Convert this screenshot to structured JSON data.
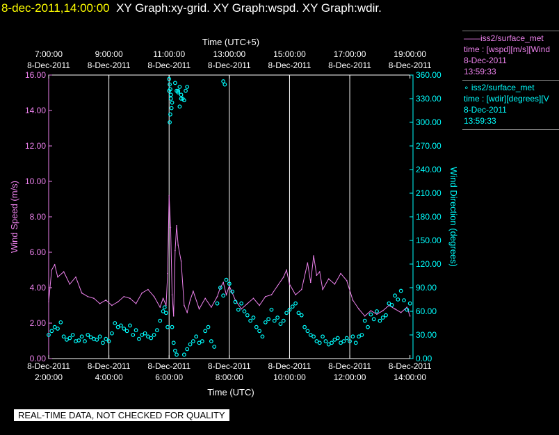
{
  "header": {
    "timestamp": "8-dec-2011,14:00:00",
    "graph_titles": "XY Graph:xy-grid.  XY Graph:wspd.  XY Graph:wdir."
  },
  "legend": {
    "speed_line1": "——iss2/surface_met",
    "speed_line2": "time : [wspd][m/s][Wind",
    "speed_line3": "8-Dec-2011",
    "speed_line4": "13:59:33",
    "dir_line1": "∘ iss2/surface_met",
    "dir_line2": "time : [wdir][degrees][V",
    "dir_line3": "8-Dec-2011",
    "dir_line4": "13:59:33"
  },
  "footer": {
    "quality_note": "REAL-TIME DATA, NOT CHECKED FOR QUALITY"
  },
  "colors": {
    "speed": "#ee82ee",
    "direction": "#00ffff",
    "grid": "#ffffff"
  },
  "chart_data": {
    "type": "line",
    "top_axis_title": "Time (UTC+5)",
    "bottom_axis_title": "Time (UTC)",
    "ylabel_left": "Wind Speed (m/s)",
    "ylabel_right": "Wind Direction (degrees)",
    "xlim_hours_utc": [
      2.0,
      14.1
    ],
    "ylim_left": [
      0,
      16
    ],
    "ylim_right": [
      0,
      360
    ],
    "left_ticks": [
      "0.00",
      "2.00",
      "4.00",
      "6.00",
      "8.00",
      "10.00",
      "12.00",
      "14.00",
      "16.00"
    ],
    "right_ticks": [
      "0.00",
      "30.00",
      "60.00",
      "90.00",
      "120.00",
      "150.00",
      "180.00",
      "210.00",
      "240.00",
      "270.00",
      "300.00",
      "330.00",
      "360.00"
    ],
    "bottom_ticks": [
      {
        "hour": 2,
        "date": "8-Dec-2011",
        "time": "2:00:00"
      },
      {
        "hour": 4,
        "date": "8-Dec-2011",
        "time": "4:00:00"
      },
      {
        "hour": 6,
        "date": "8-Dec-2011",
        "time": "6:00:00"
      },
      {
        "hour": 8,
        "date": "8-Dec-2011",
        "time": "8:00:00"
      },
      {
        "hour": 10,
        "date": "8-Dec-2011",
        "time": "10:00:00"
      },
      {
        "hour": 12,
        "date": "8-Dec-2011",
        "time": "12:00:00"
      },
      {
        "hour": 14,
        "date": "8-Dec-2011",
        "time": "14:00:00"
      }
    ],
    "top_ticks": [
      {
        "hour": 2,
        "time": "7:00:00",
        "date": "8-Dec-2011"
      },
      {
        "hour": 4,
        "time": "9:00:00",
        "date": "8-Dec-2011"
      },
      {
        "hour": 6,
        "time": "11:00:00",
        "date": "8-Dec-2011"
      },
      {
        "hour": 8,
        "time": "13:00:00",
        "date": "8-Dec-2011"
      },
      {
        "hour": 10,
        "time": "15:00:00",
        "date": "8-Dec-2011"
      },
      {
        "hour": 12,
        "time": "17:00:00",
        "date": "8-Dec-2011"
      },
      {
        "hour": 14,
        "time": "19:00:00",
        "date": "8-Dec-2011"
      }
    ],
    "grid_hours": [
      4,
      6,
      8,
      10,
      12
    ],
    "series": [
      {
        "name": "iss2/surface_met wspd",
        "axis": "left",
        "style": "line",
        "x_hours": [
          2.0,
          2.1,
          2.2,
          2.3,
          2.5,
          2.7,
          2.9,
          3.1,
          3.3,
          3.5,
          3.7,
          3.9,
          4.1,
          4.3,
          4.5,
          4.7,
          4.9,
          5.1,
          5.3,
          5.5,
          5.7,
          5.8,
          5.9,
          5.95,
          6.0,
          6.05,
          6.1,
          6.15,
          6.2,
          6.25,
          6.3,
          6.4,
          6.5,
          6.6,
          6.7,
          6.8,
          7.0,
          7.2,
          7.4,
          7.6,
          7.7,
          7.8,
          7.9,
          8.0,
          8.2,
          8.4,
          8.6,
          8.8,
          9.0,
          9.2,
          9.4,
          9.6,
          9.8,
          9.9,
          10.0,
          10.2,
          10.4,
          10.6,
          10.7,
          10.8,
          10.9,
          11.0,
          11.1,
          11.3,
          11.5,
          11.7,
          11.9,
          12.1,
          12.3,
          12.5,
          12.7,
          12.9,
          13.1,
          13.3,
          13.5,
          13.7,
          13.9,
          14.0
        ],
        "values": [
          3.2,
          5.0,
          5.3,
          4.6,
          4.9,
          4.2,
          4.6,
          3.7,
          3.5,
          3.4,
          3.1,
          3.3,
          3.0,
          3.2,
          3.5,
          3.4,
          3.1,
          3.7,
          3.9,
          3.5,
          2.9,
          3.4,
          3.0,
          4.8,
          9.2,
          7.4,
          3.6,
          2.4,
          6.1,
          7.5,
          6.4,
          5.5,
          3.0,
          2.6,
          3.3,
          3.8,
          2.8,
          3.4,
          2.9,
          3.5,
          4.0,
          4.3,
          3.6,
          4.1,
          3.3,
          2.8,
          3.1,
          3.4,
          3.0,
          3.5,
          3.6,
          4.1,
          4.6,
          5.0,
          4.2,
          3.6,
          3.9,
          5.4,
          4.3,
          5.8,
          4.7,
          4.9,
          3.9,
          4.5,
          4.2,
          4.8,
          4.4,
          3.3,
          2.8,
          2.4,
          2.7,
          2.5,
          2.7,
          3.0,
          2.8,
          2.6,
          2.9,
          2.4
        ]
      },
      {
        "name": "iss2/surface_met wdir",
        "axis": "right",
        "style": "circles",
        "x_hours": [
          2.0,
          2.1,
          2.2,
          2.3,
          2.4,
          2.5,
          2.6,
          2.7,
          2.8,
          2.9,
          3.0,
          3.1,
          3.2,
          3.3,
          3.4,
          3.5,
          3.6,
          3.7,
          3.8,
          3.9,
          4.0,
          4.1,
          4.2,
          4.3,
          4.4,
          4.5,
          4.6,
          4.7,
          4.8,
          4.9,
          5.0,
          5.1,
          5.2,
          5.3,
          5.4,
          5.5,
          5.6,
          5.7,
          5.8,
          5.85,
          5.9,
          5.95,
          6.0,
          6.02,
          6.04,
          6.06,
          6.1,
          6.15,
          6.2,
          6.25,
          6.3,
          6.35,
          6.4,
          6.5,
          6.6,
          6.7,
          6.8,
          6.9,
          7.0,
          7.1,
          7.2,
          7.3,
          7.4,
          7.5,
          7.6,
          7.7,
          7.8,
          7.9,
          8.0,
          8.1,
          8.2,
          8.3,
          8.4,
          8.5,
          8.6,
          8.7,
          8.8,
          8.9,
          9.0,
          9.1,
          9.2,
          9.3,
          9.4,
          9.5,
          9.6,
          9.7,
          9.8,
          9.9,
          10.0,
          10.1,
          10.2,
          10.3,
          10.4,
          10.5,
          10.6,
          10.7,
          10.8,
          10.9,
          11.0,
          11.1,
          11.2,
          11.3,
          11.4,
          11.5,
          11.6,
          11.7,
          11.8,
          11.9,
          12.0,
          12.1,
          12.2,
          12.3,
          12.4,
          12.5,
          12.6,
          12.7,
          12.8,
          12.9,
          13.0,
          13.1,
          13.2,
          13.3,
          13.4,
          13.5,
          13.6,
          13.7,
          13.8,
          13.9,
          14.0
        ],
        "values": [
          30,
          35,
          40,
          38,
          46,
          28,
          24,
          26,
          30,
          22,
          23,
          28,
          22,
          30,
          27,
          25,
          24,
          28,
          20,
          25,
          22,
          32,
          45,
          40,
          42,
          38,
          35,
          42,
          30,
          36,
          25,
          30,
          32,
          28,
          26,
          30,
          36,
          48,
          60,
          65,
          58,
          40,
          340,
          300,
          310,
          330,
          40,
          20,
          10,
          5,
          340,
          320,
          330,
          5,
          12,
          18,
          22,
          28,
          20,
          22,
          35,
          40,
          22,
          15,
          70,
          90,
          80,
          100,
          95,
          85,
          72,
          62,
          70,
          60,
          55,
          48,
          52,
          40,
          35,
          28,
          46,
          50,
          62,
          48,
          52,
          44,
          48,
          58,
          62,
          66,
          70,
          58,
          55,
          40,
          35,
          30,
          28,
          22,
          20,
          28,
          22,
          18,
          20,
          24,
          26,
          20,
          22,
          26,
          22,
          28,
          20,
          28,
          30,
          48,
          40,
          56,
          50,
          60,
          48,
          52,
          55,
          70,
          68,
          80,
          75,
          86,
          74,
          62,
          70
        ]
      },
      {
        "name": "iss2/surface_met wdir (upper cluster)",
        "axis": "right",
        "style": "circles",
        "x_hours": [
          6.0,
          6.02,
          6.04,
          6.06,
          6.08,
          6.1,
          6.2,
          6.25,
          6.3,
          6.35,
          6.4,
          6.45,
          6.5,
          6.55,
          6.6,
          7.8,
          7.85
        ],
        "values": [
          355,
          348,
          342,
          335,
          318,
          325,
          350,
          340,
          338,
          345,
          335,
          330,
          328,
          340,
          345,
          352,
          348
        ]
      }
    ]
  }
}
